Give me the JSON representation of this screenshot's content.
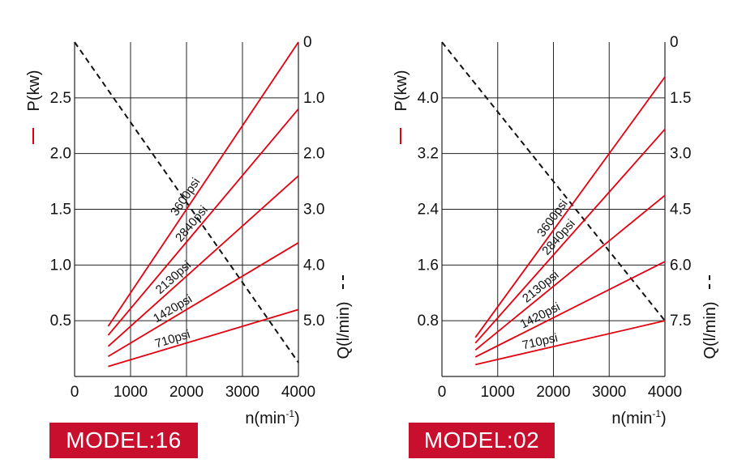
{
  "chart_data": [
    {
      "type": "line",
      "model_label": "MODEL:16",
      "x_label": "n(min",
      "x_label_sup": "-1",
      "x_label_end": ")",
      "y_left_label": "P(kw)",
      "y_right_label": "Q(l/min)",
      "xlim": [
        0,
        4000
      ],
      "x_ticks": [
        "0",
        "1000",
        "2000",
        "3000",
        "4000"
      ],
      "y_left_lim": [
        0,
        3.0
      ],
      "y_left_ticks": [
        "0.5",
        "1.0",
        "1.5",
        "2.0",
        "2.5"
      ],
      "y_left_tick_values": [
        0.5,
        1.0,
        1.5,
        2.0,
        2.5
      ],
      "y_right_lim": [
        6.0,
        0
      ],
      "y_right_ticks": [
        "0",
        "1.0",
        "2.0",
        "3.0",
        "4.0",
        "5.0"
      ],
      "y_right_tick_values": [
        0,
        1.0,
        2.0,
        3.0,
        4.0,
        5.0
      ],
      "grid": true,
      "series": [
        {
          "name": "3600psi",
          "color": "#e3000f",
          "x": [
            600,
            4000
          ],
          "y": [
            0.45,
            3.0
          ]
        },
        {
          "name": "2840psi",
          "color": "#e3000f",
          "x": [
            600,
            4000
          ],
          "y": [
            0.37,
            2.4
          ]
        },
        {
          "name": "2130psi",
          "color": "#e3000f",
          "x": [
            600,
            4000
          ],
          "y": [
            0.27,
            1.8
          ]
        },
        {
          "name": "1420psi",
          "color": "#e3000f",
          "x": [
            600,
            4000
          ],
          "y": [
            0.18,
            1.2
          ]
        },
        {
          "name": "710psi",
          "color": "#e3000f",
          "x": [
            600,
            4000
          ],
          "y": [
            0.09,
            0.6
          ]
        }
      ],
      "flow_line": {
        "style": "dashed",
        "color": "#111111",
        "x": [
          0,
          4000
        ],
        "y": [
          0,
          5.75
        ]
      }
    },
    {
      "type": "line",
      "model_label": "MODEL:02",
      "x_label": "n(min",
      "x_label_sup": "-1",
      "x_label_end": ")",
      "y_left_label": "P(kw)",
      "y_right_label": "Q(l/min)",
      "xlim": [
        0,
        4000
      ],
      "x_ticks": [
        "0",
        "1000",
        "2000",
        "3000",
        "4000"
      ],
      "y_left_lim": [
        0,
        4.8
      ],
      "y_left_ticks": [
        "0.8",
        "1.6",
        "2.4",
        "3.2",
        "4.0"
      ],
      "y_left_tick_values": [
        0.8,
        1.6,
        2.4,
        3.2,
        4.0
      ],
      "y_right_lim": [
        9.0,
        0
      ],
      "y_right_ticks": [
        "0",
        "1.5",
        "3.0",
        "4.5",
        "6.0",
        "7.5"
      ],
      "y_right_tick_values": [
        0,
        1.5,
        3.0,
        4.5,
        6.0,
        7.5
      ],
      "grid": true,
      "series": [
        {
          "name": "3600psi",
          "color": "#e3000f",
          "x": [
            600,
            4000
          ],
          "y": [
            0.56,
            4.3
          ]
        },
        {
          "name": "2840psi",
          "color": "#e3000f",
          "x": [
            600,
            4000
          ],
          "y": [
            0.48,
            3.55
          ]
        },
        {
          "name": "2130psi",
          "color": "#e3000f",
          "x": [
            600,
            4000
          ],
          "y": [
            0.38,
            2.6
          ]
        },
        {
          "name": "1420psi",
          "color": "#e3000f",
          "x": [
            600,
            4000
          ],
          "y": [
            0.28,
            1.65
          ]
        },
        {
          "name": "710psi",
          "color": "#e3000f",
          "x": [
            600,
            4000
          ],
          "y": [
            0.17,
            0.8
          ]
        }
      ],
      "flow_line": {
        "style": "dashed",
        "color": "#111111",
        "x": [
          0,
          4000
        ],
        "y": [
          0,
          7.5
        ]
      }
    }
  ]
}
